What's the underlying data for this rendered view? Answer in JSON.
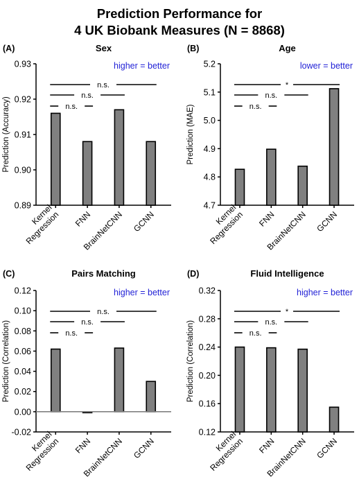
{
  "figure": {
    "title_line1": "Prediction Performance for",
    "title_line2": "4 UK Biobank Measures (N = 8868)"
  },
  "chart_data": [
    {
      "type": "bar",
      "panel": "(A)",
      "title": "Sex",
      "ylabel": "Prediction (Accuracy)",
      "note": "higher = better",
      "categories": [
        [
          "Kernel",
          "Regression"
        ],
        [
          "FNN"
        ],
        [
          "BrainNetCNN"
        ],
        [
          "GCNN"
        ]
      ],
      "values": [
        0.916,
        0.908,
        0.917,
        0.908
      ],
      "ylim": [
        0.89,
        0.93
      ],
      "yticks": [
        "0.89",
        "0.90",
        "0.91",
        "0.92",
        "0.93"
      ],
      "zero_line": false,
      "comparisons": [
        {
          "from": 0,
          "to": 3,
          "label": "n.s."
        },
        {
          "from": 0,
          "to": 2,
          "label": "n.s."
        },
        {
          "from": 0,
          "to": 1,
          "label": "n.s."
        }
      ]
    },
    {
      "type": "bar",
      "panel": "(B)",
      "title": "Age",
      "ylabel": "Prediction (MAE)",
      "note": "lower = better",
      "categories": [
        [
          "Kernel",
          "Regression"
        ],
        [
          "FNN"
        ],
        [
          "BrainNetCNN"
        ],
        [
          "GCNN"
        ]
      ],
      "values": [
        4.827,
        4.898,
        4.838,
        5.112
      ],
      "ylim": [
        4.7,
        5.2
      ],
      "yticks": [
        "4.7",
        "4.8",
        "4.9",
        "5.0",
        "5.1",
        "5.2"
      ],
      "zero_line": false,
      "comparisons": [
        {
          "from": 0,
          "to": 3,
          "label": "*"
        },
        {
          "from": 0,
          "to": 2,
          "label": "n.s."
        },
        {
          "from": 0,
          "to": 1,
          "label": "n.s."
        }
      ]
    },
    {
      "type": "bar",
      "panel": "(C)",
      "title": "Pairs Matching",
      "ylabel": "Prediction (Correlation)",
      "note": "higher = better",
      "categories": [
        [
          "Kernel",
          "Regression"
        ],
        [
          "FNN"
        ],
        [
          "BrainNetCNN"
        ],
        [
          "GCNN"
        ]
      ],
      "values": [
        0.062,
        -0.001,
        0.063,
        0.03
      ],
      "ylim": [
        -0.02,
        0.12
      ],
      "yticks": [
        "-0.02",
        "0.00",
        "0.02",
        "0.04",
        "0.06",
        "0.08",
        "0.10",
        "0.12"
      ],
      "zero_line": true,
      "comparisons": [
        {
          "from": 0,
          "to": 3,
          "label": "n.s."
        },
        {
          "from": 0,
          "to": 2,
          "label": "n.s."
        },
        {
          "from": 0,
          "to": 1,
          "label": "n.s."
        }
      ]
    },
    {
      "type": "bar",
      "panel": "(D)",
      "title": "Fluid Intelligence",
      "ylabel": "Prediction (Correlation)",
      "note": "higher = better",
      "categories": [
        [
          "Kernel",
          "Regression"
        ],
        [
          "FNN"
        ],
        [
          "BrainNetCNN"
        ],
        [
          "GCNN"
        ]
      ],
      "values": [
        0.24,
        0.239,
        0.237,
        0.155
      ],
      "ylim": [
        0.12,
        0.32
      ],
      "yticks": [
        "0.12",
        "0.16",
        "0.20",
        "0.24",
        "0.28",
        "0.32"
      ],
      "zero_line": false,
      "comparisons": [
        {
          "from": 0,
          "to": 3,
          "label": "*"
        },
        {
          "from": 0,
          "to": 2,
          "label": "n.s."
        },
        {
          "from": 0,
          "to": 1,
          "label": "n.s."
        }
      ]
    }
  ]
}
